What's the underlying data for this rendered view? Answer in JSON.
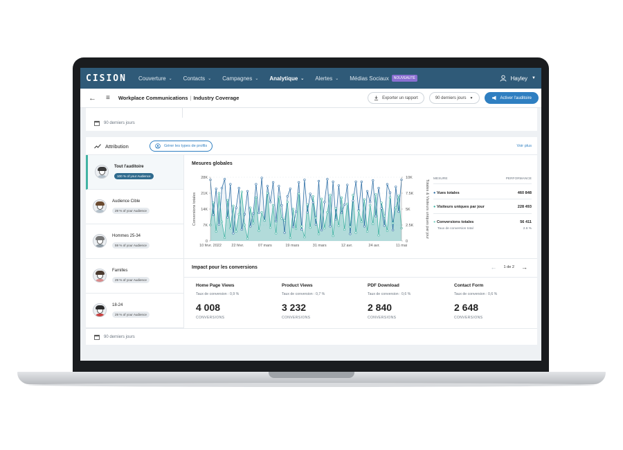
{
  "nav": {
    "logo": "CISION",
    "items": [
      {
        "label": "Couverture",
        "active": false
      },
      {
        "label": "Contacts",
        "active": false
      },
      {
        "label": "Campagnes",
        "active": false
      },
      {
        "label": "Analytique",
        "active": true
      },
      {
        "label": "Alertes",
        "active": false
      }
    ],
    "social_label": "Médias Sociaux",
    "new_badge": "NOUVEAUTÉ",
    "user_name": "Hayley"
  },
  "header": {
    "crumb_primary": "Workplace Communications",
    "crumb_sep": "|",
    "crumb_secondary": "Industry Coverage",
    "export_label": "Exporter un rapport",
    "range_label": "90 derniers jours",
    "activate_label": "Activer l'auditoire"
  },
  "date_range_footer": "90 derniers jours",
  "attribution": {
    "title": "Attribution",
    "manage_label": "Gérer les types de profils",
    "see_more": "Voir plus",
    "audiences": [
      {
        "name": "Tout l'auditoire",
        "share": "100 % of your Audience"
      },
      {
        "name": "Audience Cible",
        "share": "29 % of your Audience"
      },
      {
        "name": "Hommes 25-34",
        "share": "59 % of your Audience"
      },
      {
        "name": "Familles",
        "share": "29 % of your Audience"
      },
      {
        "name": "18-24",
        "share": "29 % of your Audience"
      }
    ],
    "selected_audience": "Tout l'auditoire"
  },
  "global": {
    "title": "Mesures globales",
    "legend_header": {
      "measure": "MESURE",
      "performance": "PERFORMANCE"
    },
    "measures": [
      {
        "label": "Vues totales",
        "value": "460 848",
        "color": "#2f6fa6"
      },
      {
        "label": "Visiteurs uniques par jour",
        "value": "228 493",
        "color": "#41b3a3"
      },
      {
        "label": "Conversions totales",
        "value": "56 411",
        "color": "#7fd3c5"
      }
    ],
    "conversion_rate_label": "Taux de conversion total",
    "conversion_rate_value": "2.6 %"
  },
  "chart_data": {
    "type": "line",
    "ylabel": "Conversions totales",
    "y2label": "Totales & Visiteurs uniques par jour",
    "y_ticks": [
      "0",
      "7K",
      "14K",
      "21K",
      "28K"
    ],
    "y2_ticks": [
      "0",
      "2.5K",
      "5K",
      "7.5K",
      "10K"
    ],
    "x_ticks": [
      "10 févr. 2022",
      "22 févr.",
      "07 mars",
      "19 mars",
      "31 mars",
      "12 avr.",
      "24 avr.",
      "11 mai"
    ],
    "ylim": [
      0,
      28000
    ],
    "y2lim": [
      0,
      10000
    ],
    "series": [
      {
        "name": "Vues totales",
        "color": "#2f6fa6",
        "axis": "y2",
        "values": [
          9600,
          4100,
          8200,
          2600,
          8300,
          9700,
          3700,
          8900,
          1200,
          5200,
          8300,
          1800,
          4200,
          7800,
          2300,
          4300,
          8900,
          4400,
          9900,
          3200,
          8600,
          6100,
          9200,
          3100,
          8600,
          5600,
          1300,
          7000,
          8200,
          2200,
          4600,
          9200,
          1800,
          9600,
          4500,
          7400,
          6000,
          2600,
          9400,
          1700,
          6100,
          9700,
          2300,
          9300,
          3400,
          8700,
          4400,
          5700,
          8800,
          1100,
          6300,
          9300,
          4800,
          9300,
          2300,
          7800,
          6100,
          9500,
          3900,
          8300,
          5100,
          2400,
          8900,
          7600,
          1700,
          8500,
          4600,
          9600
        ]
      },
      {
        "name": "Visiteurs uniques par jour",
        "color": "#41b3a3",
        "axis": "y2",
        "values": [
          2500,
          6000,
          1500,
          7500,
          3000,
          500,
          6400,
          2000,
          5500,
          1500,
          4200,
          7700,
          2500,
          400,
          5200,
          2800,
          6800,
          1600,
          4500,
          3200,
          7500,
          2100,
          5600,
          1200,
          6900,
          3500,
          3200,
          6100,
          500,
          5000,
          1900,
          7400,
          2300,
          600,
          5700,
          2100,
          7000,
          3600,
          1100,
          6600,
          2000,
          4500,
          7200,
          800,
          5100,
          2400,
          6800,
          1800,
          5800,
          2200,
          7200,
          1300,
          4700,
          3000,
          6500,
          1500,
          5600,
          2700,
          7300,
          900,
          6000,
          3900,
          1600,
          6800,
          2800,
          5200,
          7100,
          2000
        ]
      }
    ]
  },
  "impact": {
    "title": "Impact pour les conversions",
    "pager": "1 de 2",
    "metrics": [
      {
        "title": "Home Page Views",
        "rate": "Taux de conversion : 0,9 %",
        "value": "4 008",
        "caption": "CONVERSIONS"
      },
      {
        "title": "Product Views",
        "rate": "Taux de conversion : 0,7 %",
        "value": "3 232",
        "caption": "CONVERSIONS"
      },
      {
        "title": "PDF Download",
        "rate": "Taux de conversion : 0,6 %",
        "value": "2 840",
        "caption": "CONVERSIONS"
      },
      {
        "title": "Contact Form",
        "rate": "Taux de conversion : 0,6 %",
        "value": "2 648",
        "caption": "CONVERSIONS"
      }
    ]
  }
}
